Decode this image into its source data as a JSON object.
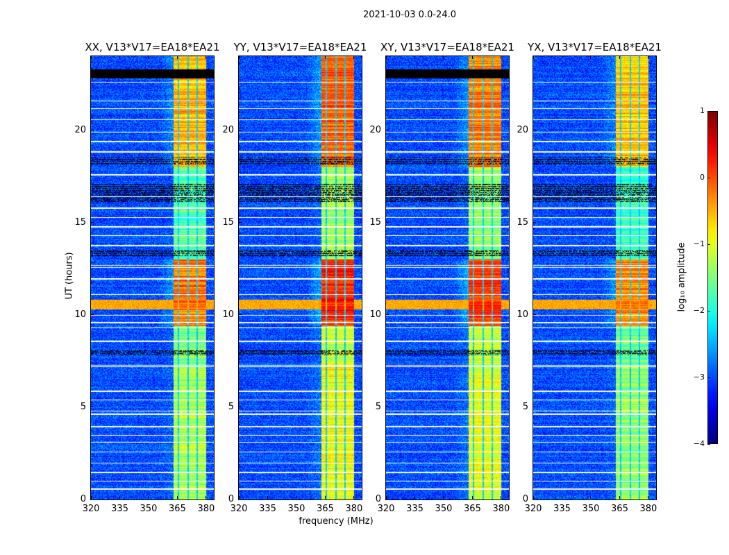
{
  "suptitle": "2021-10-03 0.0-24.0",
  "chart_data": {
    "type": "heatmap",
    "xlabel": "frequency (MHz)",
    "ylabel": "UT (hours)",
    "xlim": [
      320,
      384
    ],
    "ylim": [
      0,
      24
    ],
    "xticks": [
      "320",
      "335",
      "350",
      "365",
      "380"
    ],
    "xtick_values": [
      320,
      335,
      350,
      365,
      380
    ],
    "yticks": [
      "0",
      "5",
      "10",
      "15",
      "20"
    ],
    "ytick_values": [
      0,
      5,
      10,
      15,
      20
    ],
    "panels": [
      {
        "title": "XX, V13*V17=EA18*EA21",
        "band_gain": 0.0,
        "black_top": true
      },
      {
        "title": "YY, V13*V17=EA18*EA21",
        "band_gain": 0.4,
        "black_top": false
      },
      {
        "title": "XY, V13*V17=EA18*EA21",
        "band_gain": 0.3,
        "black_top": true
      },
      {
        "title": "YX, V13*V17=EA18*EA21",
        "band_gain": -0.1,
        "black_top": false
      }
    ],
    "model": {
      "background_level": -3.0,
      "band_mhz": [
        363,
        380
      ],
      "band_gaps_mhz": [
        365.5,
        370.5,
        375.3
      ],
      "band_levels": [
        {
          "ut": [
            0,
            7.2
          ],
          "level": -1.3
        },
        {
          "ut": [
            7.2,
            9.4
          ],
          "level": -1.5
        },
        {
          "ut": [
            9.4,
            13.0
          ],
          "level": -0.2
        },
        {
          "ut": [
            13.0,
            18.0
          ],
          "level": -1.7
        },
        {
          "ut": [
            18.0,
            24.0
          ],
          "level": -0.5
        }
      ],
      "broadband_rfi_ut": [
        [
          10.3,
          10.8
        ]
      ],
      "dark_rows_ut": [
        [
          7.8,
          8.1
        ],
        [
          13.2,
          13.5
        ],
        [
          16.1,
          17.1
        ],
        [
          18.1,
          18.5
        ]
      ],
      "black_rows_ut": [
        [
          22.8,
          23.3
        ]
      ],
      "flagged_rows_ut": [
        0.6,
        1.0,
        1.5,
        2.0,
        2.6,
        3.1,
        3.5,
        4.0,
        4.65,
        4.8,
        5.4,
        5.9,
        7.2,
        7.3,
        8.6,
        9.3,
        9.6,
        10.0,
        11.1,
        12.0,
        12.6,
        12.7,
        13.8,
        14.3,
        14.8,
        15.3,
        15.8,
        16.4,
        17.6,
        18.85,
        19.4,
        19.9,
        20.6,
        21.2,
        21.6,
        22.6
      ]
    },
    "colorbar": {
      "label": "log₁₀ amplitude",
      "range": [
        -4,
        1
      ],
      "ticks": [
        "1",
        "0",
        "−1",
        "−2",
        "−3",
        "−4"
      ],
      "tick_values": [
        1,
        0,
        -1,
        -2,
        -3,
        -4
      ],
      "colormap": "jet"
    }
  }
}
